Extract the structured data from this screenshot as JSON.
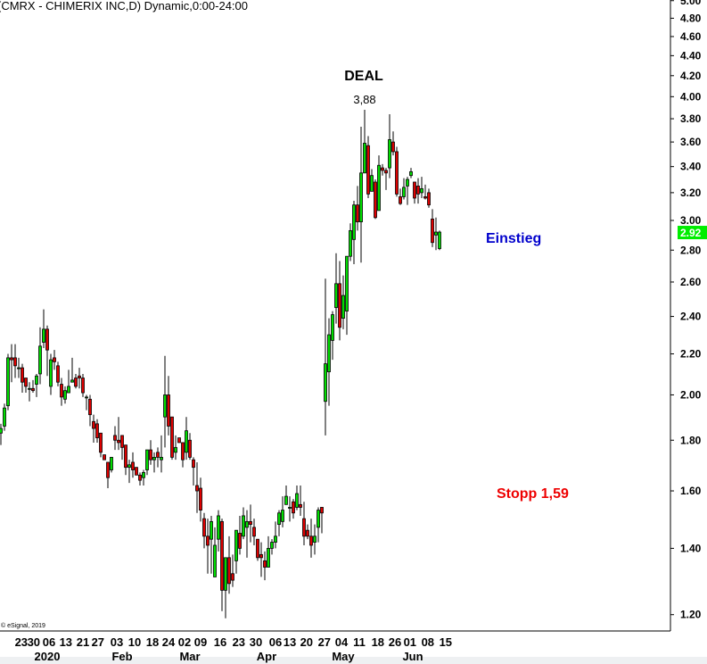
{
  "title": "(CMRX - CHIMERIX INC,D) Dynamic,0:00-24:00",
  "copyright": "© eSignal, 2019",
  "colors": {
    "up": "#00dd00",
    "down": "#dd0000",
    "last_price_tag": "#00ee00",
    "entry": "#0000cc",
    "stop": "#ee0000"
  },
  "annotations": {
    "deal": "DEAL",
    "high_label": "3,88",
    "entry": "Einstieg",
    "stop": "Stopp 1,59"
  },
  "chart_data": {
    "type": "candlestick",
    "y_scale": "log",
    "ylim": [
      1.16,
      5.0
    ],
    "grid": false,
    "y_ticks": [
      "5.00",
      "4.80",
      "4.60",
      "4.40",
      "4.20",
      "4.00",
      "3.80",
      "3.60",
      "3.40",
      "3.20",
      "3.00",
      "2.80",
      "2.60",
      "2.40",
      "2.20",
      "2.00",
      "1.80",
      "1.60",
      "1.40",
      "1.20"
    ],
    "last_price": "2.92",
    "x_ticks": [
      {
        "label": "23",
        "bar": 5.7
      },
      {
        "label": "30",
        "bar": 9.2
      },
      {
        "label": "06",
        "bar": 13.5
      },
      {
        "label": "13",
        "bar": 18.2
      },
      {
        "label": "21",
        "bar": 23
      },
      {
        "label": "27",
        "bar": 27.2
      },
      {
        "label": "03",
        "bar": 32.5
      },
      {
        "label": "10",
        "bar": 37.5
      },
      {
        "label": "18",
        "bar": 42.5
      },
      {
        "label": "24",
        "bar": 47
      },
      {
        "label": "02",
        "bar": 51.5
      },
      {
        "label": "09",
        "bar": 56
      },
      {
        "label": "16",
        "bar": 61.5
      },
      {
        "label": "23",
        "bar": 66.7
      },
      {
        "label": "30",
        "bar": 71.5
      },
      {
        "label": "06",
        "bar": 77
      },
      {
        "label": "13",
        "bar": 81
      },
      {
        "label": "20",
        "bar": 85.7
      },
      {
        "label": "27",
        "bar": 90.7
      },
      {
        "label": "04",
        "bar": 95.5
      },
      {
        "label": "11",
        "bar": 100.5
      },
      {
        "label": "18",
        "bar": 105.7
      },
      {
        "label": "26",
        "bar": 110.5
      },
      {
        "label": "01",
        "bar": 114.7
      },
      {
        "label": "08",
        "bar": 119.7
      },
      {
        "label": "15",
        "bar": 124.7
      }
    ],
    "x_months": [
      {
        "label": "2020",
        "bar": 13
      },
      {
        "label": "Feb",
        "bar": 34
      },
      {
        "label": "Mar",
        "bar": 53
      },
      {
        "label": "Apr",
        "bar": 74.5
      },
      {
        "label": "May",
        "bar": 96
      },
      {
        "label": "Jun",
        "bar": 115.5
      }
    ],
    "ohlc": [
      [
        1.83,
        1.87,
        1.78,
        1.85
      ],
      [
        1.86,
        1.96,
        1.84,
        1.94
      ],
      [
        1.95,
        2.2,
        1.93,
        2.18
      ],
      [
        2.18,
        2.25,
        2.06,
        2.17
      ],
      [
        2.18,
        2.25,
        2.08,
        2.14
      ],
      [
        2.13,
        2.18,
        2.08,
        2.13
      ],
      [
        2.13,
        2.15,
        2.01,
        2.06
      ],
      [
        2.08,
        2.08,
        2.01,
        2.04
      ],
      [
        2.03,
        2.06,
        1.97,
        2.03
      ],
      [
        2.03,
        2.07,
        2.01,
        2.02
      ],
      [
        2.05,
        2.1,
        1.99,
        2.09
      ],
      [
        2.1,
        2.34,
        2.05,
        2.24
      ],
      [
        2.26,
        2.44,
        2.23,
        2.33
      ],
      [
        2.33,
        2.35,
        2.09,
        2.22
      ],
      [
        2.04,
        2.2,
        2.0,
        2.17
      ],
      [
        2.18,
        2.22,
        2.12,
        2.16
      ],
      [
        2.14,
        2.16,
        2.04,
        2.06
      ],
      [
        2.05,
        2.08,
        1.95,
        1.99
      ],
      [
        1.98,
        2.04,
        1.96,
        2.02
      ],
      [
        2.01,
        2.12,
        2.01,
        2.04
      ],
      [
        2.06,
        2.18,
        2.06,
        2.07
      ],
      [
        2.08,
        2.1,
        2.03,
        2.04
      ],
      [
        2.09,
        2.13,
        2.03,
        2.08
      ],
      [
        2.08,
        2.1,
        1.99,
        2.01
      ],
      [
        1.99,
        2.0,
        1.93,
        1.99
      ],
      [
        1.98,
        2.0,
        1.86,
        1.91
      ],
      [
        1.88,
        1.91,
        1.79,
        1.85
      ],
      [
        1.87,
        1.89,
        1.79,
        1.81
      ],
      [
        1.83,
        1.83,
        1.73,
        1.75
      ],
      [
        1.74,
        1.74,
        1.72,
        1.72
      ],
      [
        1.71,
        1.71,
        1.61,
        1.65
      ],
      [
        1.68,
        1.73,
        1.67,
        1.73
      ],
      [
        1.82,
        1.86,
        1.76,
        1.8
      ],
      [
        1.8,
        1.9,
        1.76,
        1.79
      ],
      [
        1.82,
        1.82,
        1.72,
        1.77
      ],
      [
        1.78,
        1.78,
        1.66,
        1.69
      ],
      [
        1.69,
        1.72,
        1.63,
        1.7
      ],
      [
        1.71,
        1.75,
        1.65,
        1.68
      ],
      [
        1.69,
        1.69,
        1.66,
        1.66
      ],
      [
        1.66,
        1.67,
        1.62,
        1.64
      ],
      [
        1.65,
        1.68,
        1.62,
        1.67
      ],
      [
        1.68,
        1.76,
        1.66,
        1.76
      ],
      [
        1.76,
        1.8,
        1.7,
        1.72
      ],
      [
        1.72,
        1.75,
        1.67,
        1.73
      ],
      [
        1.75,
        1.77,
        1.69,
        1.73
      ],
      [
        1.72,
        1.82,
        1.67,
        1.73
      ],
      [
        1.9,
        2.19,
        1.77,
        2.0
      ],
      [
        2.0,
        2.09,
        1.82,
        1.86
      ],
      [
        1.9,
        1.9,
        1.72,
        1.73
      ],
      [
        1.75,
        1.82,
        1.72,
        1.77
      ],
      [
        1.81,
        1.81,
        1.79,
        1.79
      ],
      [
        1.79,
        1.79,
        1.69,
        1.72
      ],
      [
        1.75,
        1.9,
        1.72,
        1.84
      ],
      [
        1.8,
        1.83,
        1.72,
        1.73
      ],
      [
        1.72,
        1.73,
        1.62,
        1.69
      ],
      [
        1.62,
        1.71,
        1.52,
        1.6
      ],
      [
        1.61,
        1.65,
        1.49,
        1.53
      ],
      [
        1.5,
        1.52,
        1.4,
        1.44
      ],
      [
        1.44,
        1.5,
        1.32,
        1.41
      ],
      [
        1.43,
        1.51,
        1.32,
        1.49
      ],
      [
        1.31,
        1.47,
        1.31,
        1.41
      ],
      [
        1.43,
        1.53,
        1.39,
        1.51
      ],
      [
        1.49,
        1.5,
        1.21,
        1.27
      ],
      [
        1.27,
        1.37,
        1.19,
        1.37
      ],
      [
        1.37,
        1.44,
        1.26,
        1.29
      ],
      [
        1.32,
        1.38,
        1.28,
        1.3
      ],
      [
        1.36,
        1.46,
        1.32,
        1.46
      ],
      [
        1.45,
        1.51,
        1.38,
        1.4
      ],
      [
        1.44,
        1.54,
        1.43,
        1.51
      ],
      [
        1.47,
        1.53,
        1.37,
        1.49
      ],
      [
        1.49,
        1.55,
        1.42,
        1.48
      ],
      [
        1.47,
        1.5,
        1.41,
        1.44
      ],
      [
        1.43,
        1.43,
        1.36,
        1.37
      ],
      [
        1.38,
        1.42,
        1.31,
        1.37
      ],
      [
        1.36,
        1.39,
        1.3,
        1.34
      ],
      [
        1.34,
        1.44,
        1.34,
        1.4
      ],
      [
        1.4,
        1.43,
        1.38,
        1.42
      ],
      [
        1.42,
        1.49,
        1.4,
        1.44
      ],
      [
        1.48,
        1.53,
        1.44,
        1.52
      ],
      [
        1.49,
        1.58,
        1.47,
        1.53
      ],
      [
        1.55,
        1.62,
        1.55,
        1.58
      ],
      [
        1.54,
        1.58,
        1.49,
        1.54
      ],
      [
        1.56,
        1.57,
        1.5,
        1.52
      ],
      [
        1.54,
        1.62,
        1.53,
        1.59
      ],
      [
        1.55,
        1.62,
        1.51,
        1.54
      ],
      [
        1.5,
        1.56,
        1.41,
        1.44
      ],
      [
        1.46,
        1.48,
        1.43,
        1.44
      ],
      [
        1.44,
        1.5,
        1.37,
        1.41
      ],
      [
        1.42,
        1.48,
        1.38,
        1.44
      ],
      [
        1.47,
        1.54,
        1.42,
        1.53
      ],
      [
        1.54,
        1.54,
        1.45,
        1.52
      ],
      [
        1.97,
        2.62,
        1.82,
        2.15
      ],
      [
        2.11,
        2.39,
        1.95,
        2.3
      ],
      [
        2.27,
        2.43,
        2.17,
        2.41
      ],
      [
        2.45,
        2.78,
        2.36,
        2.59
      ],
      [
        2.59,
        2.73,
        2.27,
        2.34
      ],
      [
        2.39,
        2.64,
        2.33,
        2.52
      ],
      [
        2.43,
        2.76,
        2.3,
        2.76
      ],
      [
        2.76,
        2.98,
        2.73,
        2.93
      ],
      [
        2.87,
        3.14,
        2.71,
        3.11
      ],
      [
        3.11,
        3.25,
        2.93,
        2.99
      ],
      [
        2.99,
        3.73,
        2.72,
        3.35
      ],
      [
        3.35,
        3.88,
        3.35,
        3.59
      ],
      [
        3.57,
        3.65,
        3.16,
        3.19
      ],
      [
        3.21,
        3.38,
        3.21,
        3.33
      ],
      [
        3.28,
        3.3,
        3.01,
        3.02
      ],
      [
        3.07,
        3.49,
        3.07,
        3.41
      ],
      [
        3.39,
        3.42,
        3.33,
        3.37
      ],
      [
        3.37,
        3.39,
        3.22,
        3.35
      ],
      [
        3.39,
        3.84,
        3.31,
        3.62
      ],
      [
        3.6,
        3.69,
        3.49,
        3.52
      ],
      [
        3.52,
        3.56,
        3.17,
        3.19
      ],
      [
        3.17,
        3.23,
        3.11,
        3.12
      ],
      [
        3.17,
        3.31,
        3.15,
        3.24
      ],
      [
        3.25,
        3.32,
        3.11,
        3.3
      ],
      [
        3.33,
        3.39,
        3.31,
        3.36
      ],
      [
        3.28,
        3.28,
        3.12,
        3.16
      ],
      [
        3.25,
        3.31,
        3.12,
        3.19
      ],
      [
        3.2,
        3.32,
        3.16,
        3.23
      ],
      [
        3.17,
        3.26,
        3.15,
        3.16
      ],
      [
        3.2,
        3.23,
        3.09,
        3.11
      ],
      [
        3.01,
        3.08,
        2.82,
        2.85
      ],
      [
        2.9,
        3.02,
        2.8,
        2.92
      ],
      [
        2.81,
        2.93,
        2.8,
        2.92
      ]
    ]
  }
}
